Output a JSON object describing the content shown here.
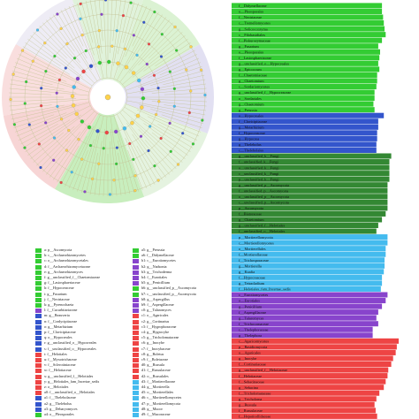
{
  "chart_data": [
    {
      "type": "cladogram",
      "title": "",
      "legend": [
        {
          "label": "a: p__Ascomycota",
          "color": "#33cc33"
        },
        {
          "label": "b: c__Archaeorhizomycetes",
          "color": "#33cc33"
        },
        {
          "label": "c: o__Archaeorhizomycetales",
          "color": "#33cc33"
        },
        {
          "label": "d: f__Archaeorhizomycetaceae",
          "color": "#33cc33"
        },
        {
          "label": "e: g__Archaeorhizomyces",
          "color": "#33cc33"
        },
        {
          "label": "f: g__unclassified_f__Chaetomiaceae",
          "color": "#33cc33"
        },
        {
          "label": "g: f__Lasiosphaeriaceae",
          "color": "#33cc33"
        },
        {
          "label": "h: f__Hypocreaceae",
          "color": "#33cc33"
        },
        {
          "label": "i: g__Fusarium",
          "color": "#33cc33"
        },
        {
          "label": "j: f__Nectriaceae",
          "color": "#33cc33"
        },
        {
          "label": "k: g__Pyrenochaeta",
          "color": "#33cc33"
        },
        {
          "label": "l: f__Cucurbitariaceae",
          "color": "#8844cc"
        },
        {
          "label": "m: g__Beauveria",
          "color": "#3355cc"
        },
        {
          "label": "n: f__Cordycipitaceae",
          "color": "#3355cc"
        },
        {
          "label": "o: g__Metarhizium",
          "color": "#3355cc"
        },
        {
          "label": "p: f__Clavicipitaceae",
          "color": "#3355cc"
        },
        {
          "label": "q: o__Hypocreales",
          "color": "#3355cc"
        },
        {
          "label": "r: g__unclassified_o__Hypocreales",
          "color": "#3355cc"
        },
        {
          "label": "s: f__unclassified_o__Hypocreales",
          "color": "#3355cc"
        },
        {
          "label": "t: f__Helotiales",
          "color": "#ee4444"
        },
        {
          "label": "u: f__Myxotrichaceae",
          "color": "#ee4444"
        },
        {
          "label": "v: f__Sclerotiniaceae",
          "color": "#ee4444"
        },
        {
          "label": "w: f__Helotiaceae",
          "color": "#ee4444"
        },
        {
          "label": "x: g__unclassified_f__Helotiales",
          "color": "#ee4444"
        },
        {
          "label": "y: g__Helotiales_fam_Incertae_sedis",
          "color": "#ee4444"
        },
        {
          "label": "z: o__Helotiales",
          "color": "#ee4444"
        },
        {
          "label": "a0: f__unclassified_o__Helotiales",
          "color": "#ee4444"
        },
        {
          "label": "a1: f__Thelebolaceae",
          "color": "#3355cc"
        },
        {
          "label": "a2: g__Thelebolus",
          "color": "#3355cc"
        },
        {
          "label": "a3: g__Debaryomyces",
          "color": "#3355cc"
        },
        {
          "label": "a4: o__Pleosporales",
          "color": "#33cc33"
        },
        {
          "label": "a5: g__Preussia",
          "color": "#33cc33"
        },
        {
          "label": "a6: f__Didymellaceae",
          "color": "#33cc33"
        },
        {
          "label": "b1: c__Eurotiomycetes",
          "color": "#8844cc"
        },
        {
          "label": "b2: g__Nadsonia",
          "color": "#8844cc"
        },
        {
          "label": "b3: g__Trichoderma",
          "color": "#8844cc"
        },
        {
          "label": "b4: f__Eurotiales",
          "color": "#8844cc"
        },
        {
          "label": "b5: g__Penicillium",
          "color": "#8844cc"
        },
        {
          "label": "b6: g__unclassified_p__Ascomycota",
          "color": "#33cc33"
        },
        {
          "label": "b7: c__unclassified_p__Ascomycota",
          "color": "#33cc33"
        },
        {
          "label": "b8: g__Aspergillus",
          "color": "#8844cc"
        },
        {
          "label": "b9: f__Aspergillaceae",
          "color": "#8844cc"
        },
        {
          "label": "c0: g__Talaromyces",
          "color": "#8844cc"
        },
        {
          "label": "c1: o__Agaricales",
          "color": "#ee4444"
        },
        {
          "label": "c2: g__Cortinarius",
          "color": "#ee4444"
        },
        {
          "label": "c3: f__Hygrophoraceae",
          "color": "#ee4444"
        },
        {
          "label": "c4: g__Hygrocybe",
          "color": "#ee4444"
        },
        {
          "label": "c5: g__Tricholomataceae",
          "color": "#ee4444"
        },
        {
          "label": "c6: g__Inocybe",
          "color": "#ee4444"
        },
        {
          "label": "c7: f__Inocybaceae",
          "color": "#ee4444"
        },
        {
          "label": "c8: g__Boletus",
          "color": "#ee4444"
        },
        {
          "label": "c9: f__Boletaceae",
          "color": "#ee4444"
        },
        {
          "label": "d0: g__Russula",
          "color": "#ee4444"
        },
        {
          "label": "d1: f__Russulaceae",
          "color": "#ee4444"
        },
        {
          "label": "d2: o__Russulales",
          "color": "#ee4444"
        },
        {
          "label": "d3: f__Mortierellaceae",
          "color": "#44bbee"
        },
        {
          "label": "d4: g__Mortierella",
          "color": "#44bbee"
        },
        {
          "label": "d5: o__Mortierellales",
          "color": "#44bbee"
        },
        {
          "label": "d6: c__Mortierellomycetes",
          "color": "#44bbee"
        },
        {
          "label": "d7: p__Mortierellomycota",
          "color": "#44bbee"
        },
        {
          "label": "d8: g__Mucor",
          "color": "#44bbee"
        },
        {
          "label": "d9: f__Mucoraceae",
          "color": "#44bbee"
        }
      ]
    },
    {
      "type": "bar",
      "orientation": "horizontal",
      "categories": [
        "f__Didymellaceae",
        "o__Pleosporales",
        "f__Nectriaceae",
        "c__Tremellomycetes",
        "g__Solicoccozyma",
        "c__Filobasidiales",
        "f__Piskurozymaceae",
        "g__Fusarium",
        "o__Pleosporales",
        "f__Lasiosphaeriaceae",
        "g__unclassified_o__Hypocreales",
        "g__Epicoccum",
        "f__Chaetomiaceae",
        "g__Chaetomium",
        "c__Sordariomycetes",
        "g__unclassified_f__Hypocreaceae",
        "o__Sordariales",
        "g__Chaetomium",
        "g__Preussia",
        "o__Hypocreales",
        "f__Clavicipitaceae",
        "g__Metarhizium",
        "f__Hypocreaceae",
        "g__Hypocrea",
        "g__Thelebolus",
        "c__Thelebolales",
        "g__unclassified_k__Fungi",
        "f__unclassified_k__Fungi",
        "o__unclassified_k__Fungi",
        "c__unclassified_k__Fungi",
        "p__unclassified_k__Fungi",
        "g__unclassified_p__Ascomycota",
        "f__unclassified_p__Ascomycota",
        "o__unclassified_p__Ascomycota",
        "c__unclassified_p__Ascomycota",
        "p__Ascomycota",
        "f__Biatoraceae",
        "g__Chaetomium",
        "g__unclassified_f__Helotiales",
        "f__unclassified_o__Helotiales",
        "p__Mortierellomycota",
        "c__Mortierellomycetes",
        "o__Mortierellales",
        "f__Mortierellaceae",
        "f__Trichosporaceae",
        "g__Mortierella",
        "g__Kuafia",
        "f__Hypocreaceae",
        "g__Tetracladium",
        "f__Helotiales_fam_Incertae_sedis",
        "c__Eurotiomycetes",
        "o__Eurotiales",
        "g__Penicillium",
        "f__Aspergillaceae",
        "g__Talaromyces",
        "f__Trichocomaceae",
        "c__Thelephoraceae",
        "g__Thelephora",
        "c__Agaricomycetes",
        "p__Basidiomycota",
        "o__Agaricales",
        "g__Inocybe",
        "f__Cortinariaceae",
        "g__unclassified_f__Helotiaceae",
        "f__Helotiaceae",
        "f__Sebacinaceae",
        "g__Sebacina",
        "f__Tricholomataceae",
        "g__Tricholoma",
        "g__Russula",
        "f__Russulaceae",
        "f__Hepaticellidaceae"
      ],
      "values": [
        4.05,
        4.05,
        4.08,
        4.1,
        4.12,
        4.15,
        4.05,
        3.95,
        4.0,
        3.98,
        3.95,
        3.98,
        3.92,
        3.92,
        3.9,
        3.85,
        3.85,
        3.82,
        3.85,
        4.1,
        3.95,
        3.95,
        3.92,
        3.92,
        3.9,
        3.9,
        4.3,
        4.25,
        4.25,
        4.25,
        4.25,
        4.2,
        4.2,
        4.2,
        4.2,
        4.2,
        4.15,
        4.05,
        3.95,
        3.9,
        4.2,
        4.2,
        4.15,
        4.15,
        4.12,
        4.12,
        4.1,
        4.05,
        4.05,
        4.02,
        4.2,
        4.15,
        4.05,
        3.95,
        3.9,
        3.95,
        3.8,
        3.8,
        4.5,
        4.45,
        4.42,
        4.35,
        4.3,
        4.22,
        4.2,
        4.15,
        4.1,
        3.98,
        3.9,
        3.85,
        3.88,
        3.92
      ],
      "colors": [
        "#33cc33",
        "#33cc33",
        "#33cc33",
        "#33cc33",
        "#33cc33",
        "#33cc33",
        "#33cc33",
        "#33cc33",
        "#33cc33",
        "#33cc33",
        "#33cc33",
        "#33cc33",
        "#33cc33",
        "#33cc33",
        "#33cc33",
        "#33cc33",
        "#33cc33",
        "#33cc33",
        "#33cc33",
        "#3355cc",
        "#3355cc",
        "#3355cc",
        "#3355cc",
        "#3355cc",
        "#3355cc",
        "#3355cc",
        "#338833",
        "#338833",
        "#338833",
        "#338833",
        "#338833",
        "#338833",
        "#338833",
        "#338833",
        "#338833",
        "#338833",
        "#338833",
        "#338833",
        "#338833",
        "#338833",
        "#44bbee",
        "#44bbee",
        "#44bbee",
        "#44bbee",
        "#44bbee",
        "#44bbee",
        "#44bbee",
        "#44bbee",
        "#44bbee",
        "#44bbee",
        "#8844cc",
        "#8844cc",
        "#8844cc",
        "#8844cc",
        "#8844cc",
        "#8844cc",
        "#8844cc",
        "#8844cc",
        "#ee4444",
        "#ee4444",
        "#ee4444",
        "#ee4444",
        "#ee4444",
        "#ee4444",
        "#ee4444",
        "#ee4444",
        "#ee4444",
        "#ee4444",
        "#ee4444",
        "#ee4444",
        "#ee4444",
        "#ee4444"
      ],
      "xlim": [
        0,
        5
      ]
    }
  ]
}
